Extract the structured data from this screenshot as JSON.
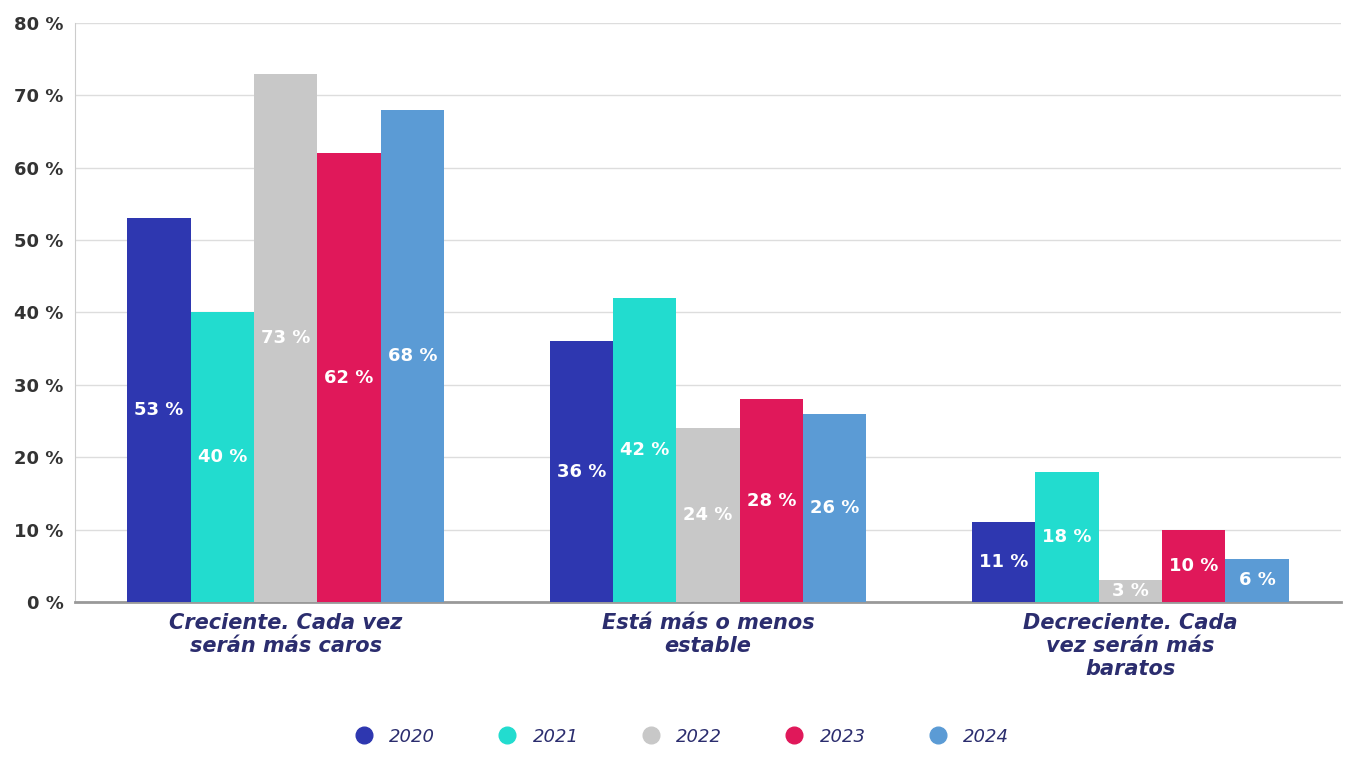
{
  "chart_data": {
    "type": "bar",
    "categories": [
      "Creciente. Cada vez serán más caros",
      "Está más o menos estable",
      "Decreciente. Cada vez serán más baratos"
    ],
    "series": [
      {
        "name": "2020",
        "color": "#2e37b0",
        "values": [
          53,
          36,
          11
        ],
        "value_labels": [
          "53 %",
          "36 %",
          "11 %"
        ]
      },
      {
        "name": "2021",
        "color": "#22dccf",
        "values": [
          40,
          42,
          18
        ],
        "value_labels": [
          "40 %",
          "42 %",
          "18 %"
        ]
      },
      {
        "name": "2022",
        "color": "#c8c8c8",
        "values": [
          73,
          24,
          3
        ],
        "value_labels": [
          "73 %",
          "24 %",
          "3 %"
        ]
      },
      {
        "name": "2023",
        "color": "#e0185a",
        "values": [
          62,
          28,
          10
        ],
        "value_labels": [
          "62 %",
          "28 %",
          "10 %"
        ]
      },
      {
        "name": "2024",
        "color": "#5b9bd5",
        "values": [
          68,
          26,
          6
        ],
        "value_labels": [
          "68 %",
          "26 %",
          "6 %"
        ]
      }
    ],
    "ylim": [
      0,
      80
    ],
    "yticks": [
      {
        "value": 0,
        "label": "0 %"
      },
      {
        "value": 10,
        "label": "10 %"
      },
      {
        "value": 20,
        "label": "20 %"
      },
      {
        "value": 30,
        "label": "30 %"
      },
      {
        "value": 40,
        "label": "40 %"
      },
      {
        "value": 50,
        "label": "50 %"
      },
      {
        "value": 60,
        "label": "60 %"
      },
      {
        "value": 70,
        "label": "70 %"
      },
      {
        "value": 80,
        "label": "80 %"
      }
    ],
    "grid": true,
    "data_labels": true,
    "legend": "lower center"
  }
}
